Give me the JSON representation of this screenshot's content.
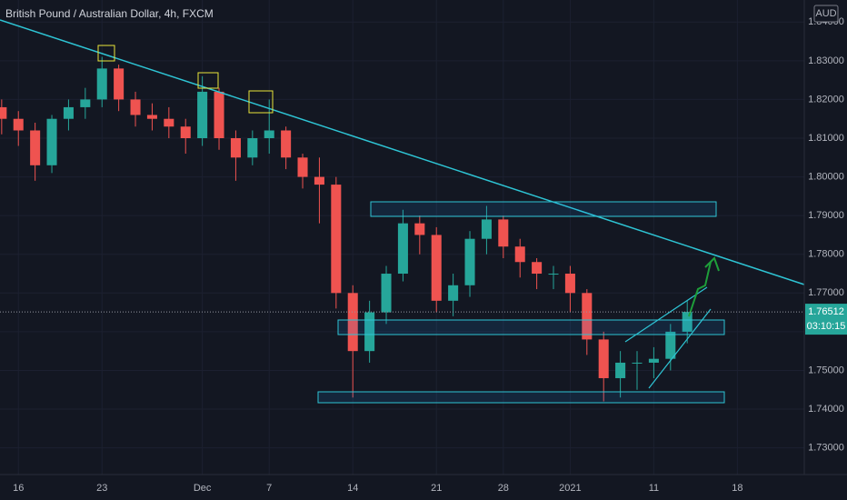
{
  "chart_data": {
    "type": "candlestick",
    "title": "British Pound / Australian Dollar, 4h, FXCM",
    "currency": "AUD",
    "last_price": 1.76512,
    "countdown": "03:10:15",
    "up_color": "#26a69a",
    "down_color": "#ef5350",
    "x": [
      -1,
      0,
      1,
      2,
      3,
      4,
      5,
      6,
      7,
      8,
      9,
      10,
      11,
      12,
      13,
      14,
      15,
      16,
      17,
      18,
      19,
      20,
      21,
      22,
      23,
      24,
      25,
      26,
      27,
      28,
      29,
      30,
      31,
      32,
      33,
      34,
      35,
      36,
      37,
      38,
      39,
      40
    ],
    "open": [
      1.818,
      1.815,
      1.812,
      1.803,
      1.815,
      1.818,
      1.82,
      1.828,
      1.82,
      1.816,
      1.815,
      1.813,
      1.81,
      1.822,
      1.81,
      1.805,
      1.81,
      1.812,
      1.805,
      1.8,
      1.798,
      1.77,
      1.755,
      1.765,
      1.775,
      1.788,
      1.785,
      1.768,
      1.772,
      1.784,
      1.789,
      1.782,
      1.778,
      1.775,
      1.775,
      1.77,
      1.758,
      1.748,
      1.752,
      1.752,
      1.753,
      1.76
    ],
    "high": [
      1.82,
      1.817,
      1.814,
      1.816,
      1.82,
      1.823,
      1.831,
      1.829,
      1.822,
      1.819,
      1.818,
      1.815,
      1.826,
      1.823,
      1.812,
      1.812,
      1.82,
      1.813,
      1.806,
      1.805,
      1.8,
      1.772,
      1.768,
      1.777,
      1.7915,
      1.79,
      1.787,
      1.775,
      1.786,
      1.7925,
      1.79,
      1.784,
      1.779,
      1.777,
      1.777,
      1.771,
      1.76,
      1.755,
      1.755,
      1.756,
      1.762,
      1.768
    ],
    "low": [
      1.811,
      1.808,
      1.799,
      1.801,
      1.812,
      1.815,
      1.818,
      1.817,
      1.813,
      1.812,
      1.81,
      1.806,
      1.808,
      1.807,
      1.799,
      1.803,
      1.806,
      1.802,
      1.797,
      1.788,
      1.766,
      1.743,
      1.752,
      1.762,
      1.773,
      1.78,
      1.765,
      1.764,
      1.769,
      1.78,
      1.779,
      1.774,
      1.771,
      1.771,
      1.765,
      1.754,
      1.742,
      1.743,
      1.745,
      1.748,
      1.75,
      1.757
    ],
    "close": [
      1.815,
      1.812,
      1.803,
      1.815,
      1.818,
      1.82,
      1.828,
      1.82,
      1.816,
      1.815,
      1.813,
      1.81,
      1.822,
      1.81,
      1.805,
      1.81,
      1.812,
      1.805,
      1.8,
      1.798,
      1.77,
      1.755,
      1.765,
      1.775,
      1.788,
      1.785,
      1.768,
      1.772,
      1.784,
      1.789,
      1.782,
      1.778,
      1.775,
      1.775,
      1.77,
      1.758,
      1.748,
      1.752,
      1.752,
      1.753,
      1.76,
      1.76512
    ],
    "xlim": [
      -1.1,
      47
    ],
    "xticks": [
      {
        "value": 0,
        "label": "16"
      },
      {
        "value": 5,
        "label": "23"
      },
      {
        "value": 11,
        "label": "Dec"
      },
      {
        "value": 15,
        "label": "7"
      },
      {
        "value": 20,
        "label": "14"
      },
      {
        "value": 25,
        "label": "21"
      },
      {
        "value": 29,
        "label": "28"
      },
      {
        "value": 33,
        "label": "2021"
      },
      {
        "value": 38,
        "label": "11"
      },
      {
        "value": 43,
        "label": "18"
      }
    ],
    "ylim": [
      1.7231,
      1.8457
    ],
    "yticks": [
      {
        "value": 1.73,
        "label": "1.73000"
      },
      {
        "value": 1.74,
        "label": "1.74000"
      },
      {
        "value": 1.75,
        "label": "1.75000"
      },
      {
        "value": 1.76,
        "label": "1.76000"
      },
      {
        "value": 1.77,
        "label": "1.77000"
      },
      {
        "value": 1.78,
        "label": "1.78000"
      },
      {
        "value": 1.79,
        "label": "1.79000"
      },
      {
        "value": 1.8,
        "label": "1.80000"
      },
      {
        "value": 1.81,
        "label": "1.81000"
      },
      {
        "value": 1.82,
        "label": "1.82000"
      },
      {
        "value": 1.83,
        "label": "1.83000"
      },
      {
        "value": 1.84,
        "label": "1.84000"
      }
    ],
    "grid": true
  }
}
